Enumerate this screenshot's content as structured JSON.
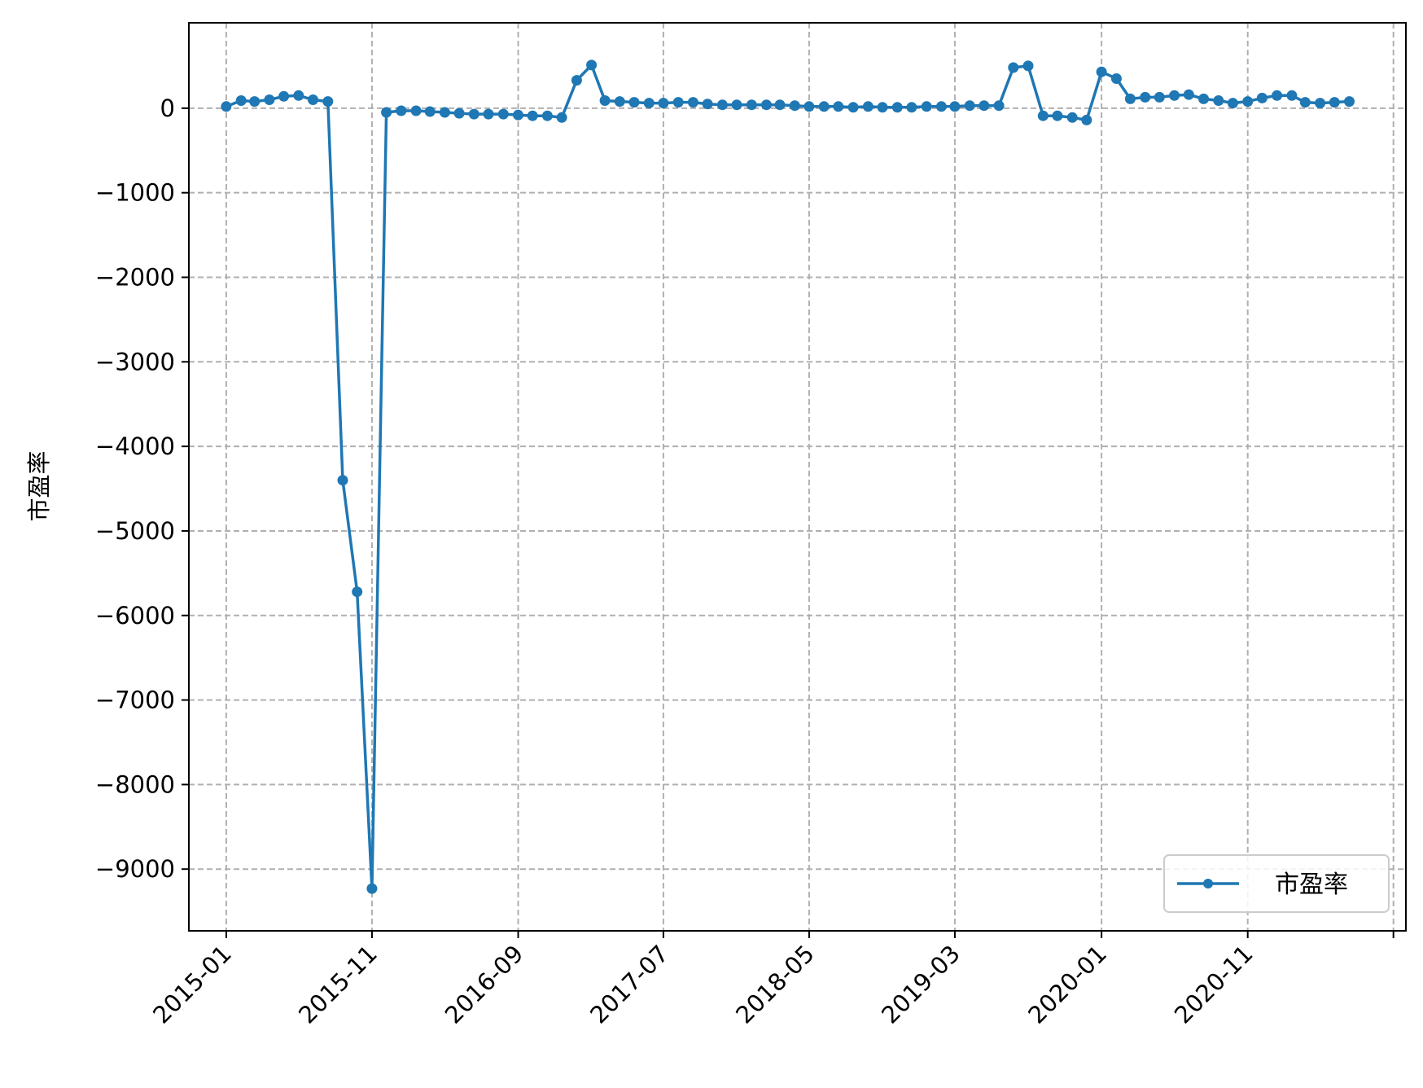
{
  "chart_data": {
    "type": "line",
    "ylabel": "市盈率",
    "xlabel": "",
    "legend": {
      "position": "lower-right"
    },
    "grid": true,
    "x_range": [
      "2014-10-15",
      "2021-09-27"
    ],
    "ylim": [
      -9730,
      1010
    ],
    "yticks": [
      {
        "value": 0,
        "label": "0"
      },
      {
        "value": -1000,
        "label": "−1000"
      },
      {
        "value": -2000,
        "label": "−2000"
      },
      {
        "value": -3000,
        "label": "−3000"
      },
      {
        "value": -4000,
        "label": "−4000"
      },
      {
        "value": -5000,
        "label": "−5000"
      },
      {
        "value": -6000,
        "label": "−6000"
      },
      {
        "value": -7000,
        "label": "−7000"
      },
      {
        "value": -8000,
        "label": "−8000"
      },
      {
        "value": -9000,
        "label": "−9000"
      }
    ],
    "xticks": [
      {
        "date": "2015-01",
        "label": "2015-01"
      },
      {
        "date": "2015-11",
        "label": "2015-11"
      },
      {
        "date": "2016-09",
        "label": "2016-09"
      },
      {
        "date": "2017-07",
        "label": "2017-07"
      },
      {
        "date": "2018-05",
        "label": "2018-05"
      },
      {
        "date": "2019-03",
        "label": "2019-03"
      },
      {
        "date": "2020-01",
        "label": "2020-01"
      },
      {
        "date": "2020-11",
        "label": "2020-11"
      },
      {
        "date": "2021-09",
        "label": ""
      }
    ],
    "series": [
      {
        "name": "市盈率",
        "color": "#1f77b4",
        "marker": "circle",
        "x": [
          "2015-01",
          "2015-02",
          "2015-03",
          "2015-04",
          "2015-05",
          "2015-06",
          "2015-07",
          "2015-08",
          "2015-09",
          "2015-10",
          "2015-11",
          "2015-12",
          "2016-01",
          "2016-02",
          "2016-03",
          "2016-04",
          "2016-05",
          "2016-06",
          "2016-07",
          "2016-08",
          "2016-09",
          "2016-10",
          "2016-11",
          "2016-12",
          "2017-01",
          "2017-02",
          "2017-03",
          "2017-04",
          "2017-05",
          "2017-06",
          "2017-07",
          "2017-08",
          "2017-09",
          "2017-10",
          "2017-11",
          "2017-12",
          "2018-01",
          "2018-02",
          "2018-03",
          "2018-04",
          "2018-05",
          "2018-06",
          "2018-07",
          "2018-08",
          "2018-09",
          "2018-10",
          "2018-11",
          "2018-12",
          "2019-01",
          "2019-02",
          "2019-03",
          "2019-04",
          "2019-05",
          "2019-06",
          "2019-07",
          "2019-08",
          "2019-09",
          "2019-10",
          "2019-11",
          "2019-12",
          "2020-01",
          "2020-02",
          "2020-03",
          "2020-04",
          "2020-05",
          "2020-06",
          "2020-07",
          "2020-08",
          "2020-09",
          "2020-10",
          "2020-11",
          "2020-12",
          "2021-01",
          "2021-02",
          "2021-03",
          "2021-04",
          "2021-05",
          "2021-06"
        ],
        "y": [
          20,
          90,
          80,
          100,
          140,
          150,
          100,
          80,
          -4400,
          -5720,
          -9230,
          -50,
          -30,
          -30,
          -40,
          -50,
          -60,
          -70,
          -70,
          -70,
          -80,
          -90,
          -90,
          -110,
          330,
          510,
          90,
          80,
          70,
          60,
          60,
          70,
          70,
          50,
          40,
          40,
          40,
          40,
          40,
          30,
          20,
          20,
          20,
          10,
          20,
          10,
          10,
          10,
          20,
          20,
          20,
          30,
          30,
          30,
          480,
          500,
          -90,
          -90,
          -110,
          -140,
          430,
          350,
          110,
          130,
          130,
          150,
          160,
          110,
          90,
          60,
          80,
          120,
          150,
          150,
          70,
          60,
          70,
          80
        ]
      }
    ]
  }
}
